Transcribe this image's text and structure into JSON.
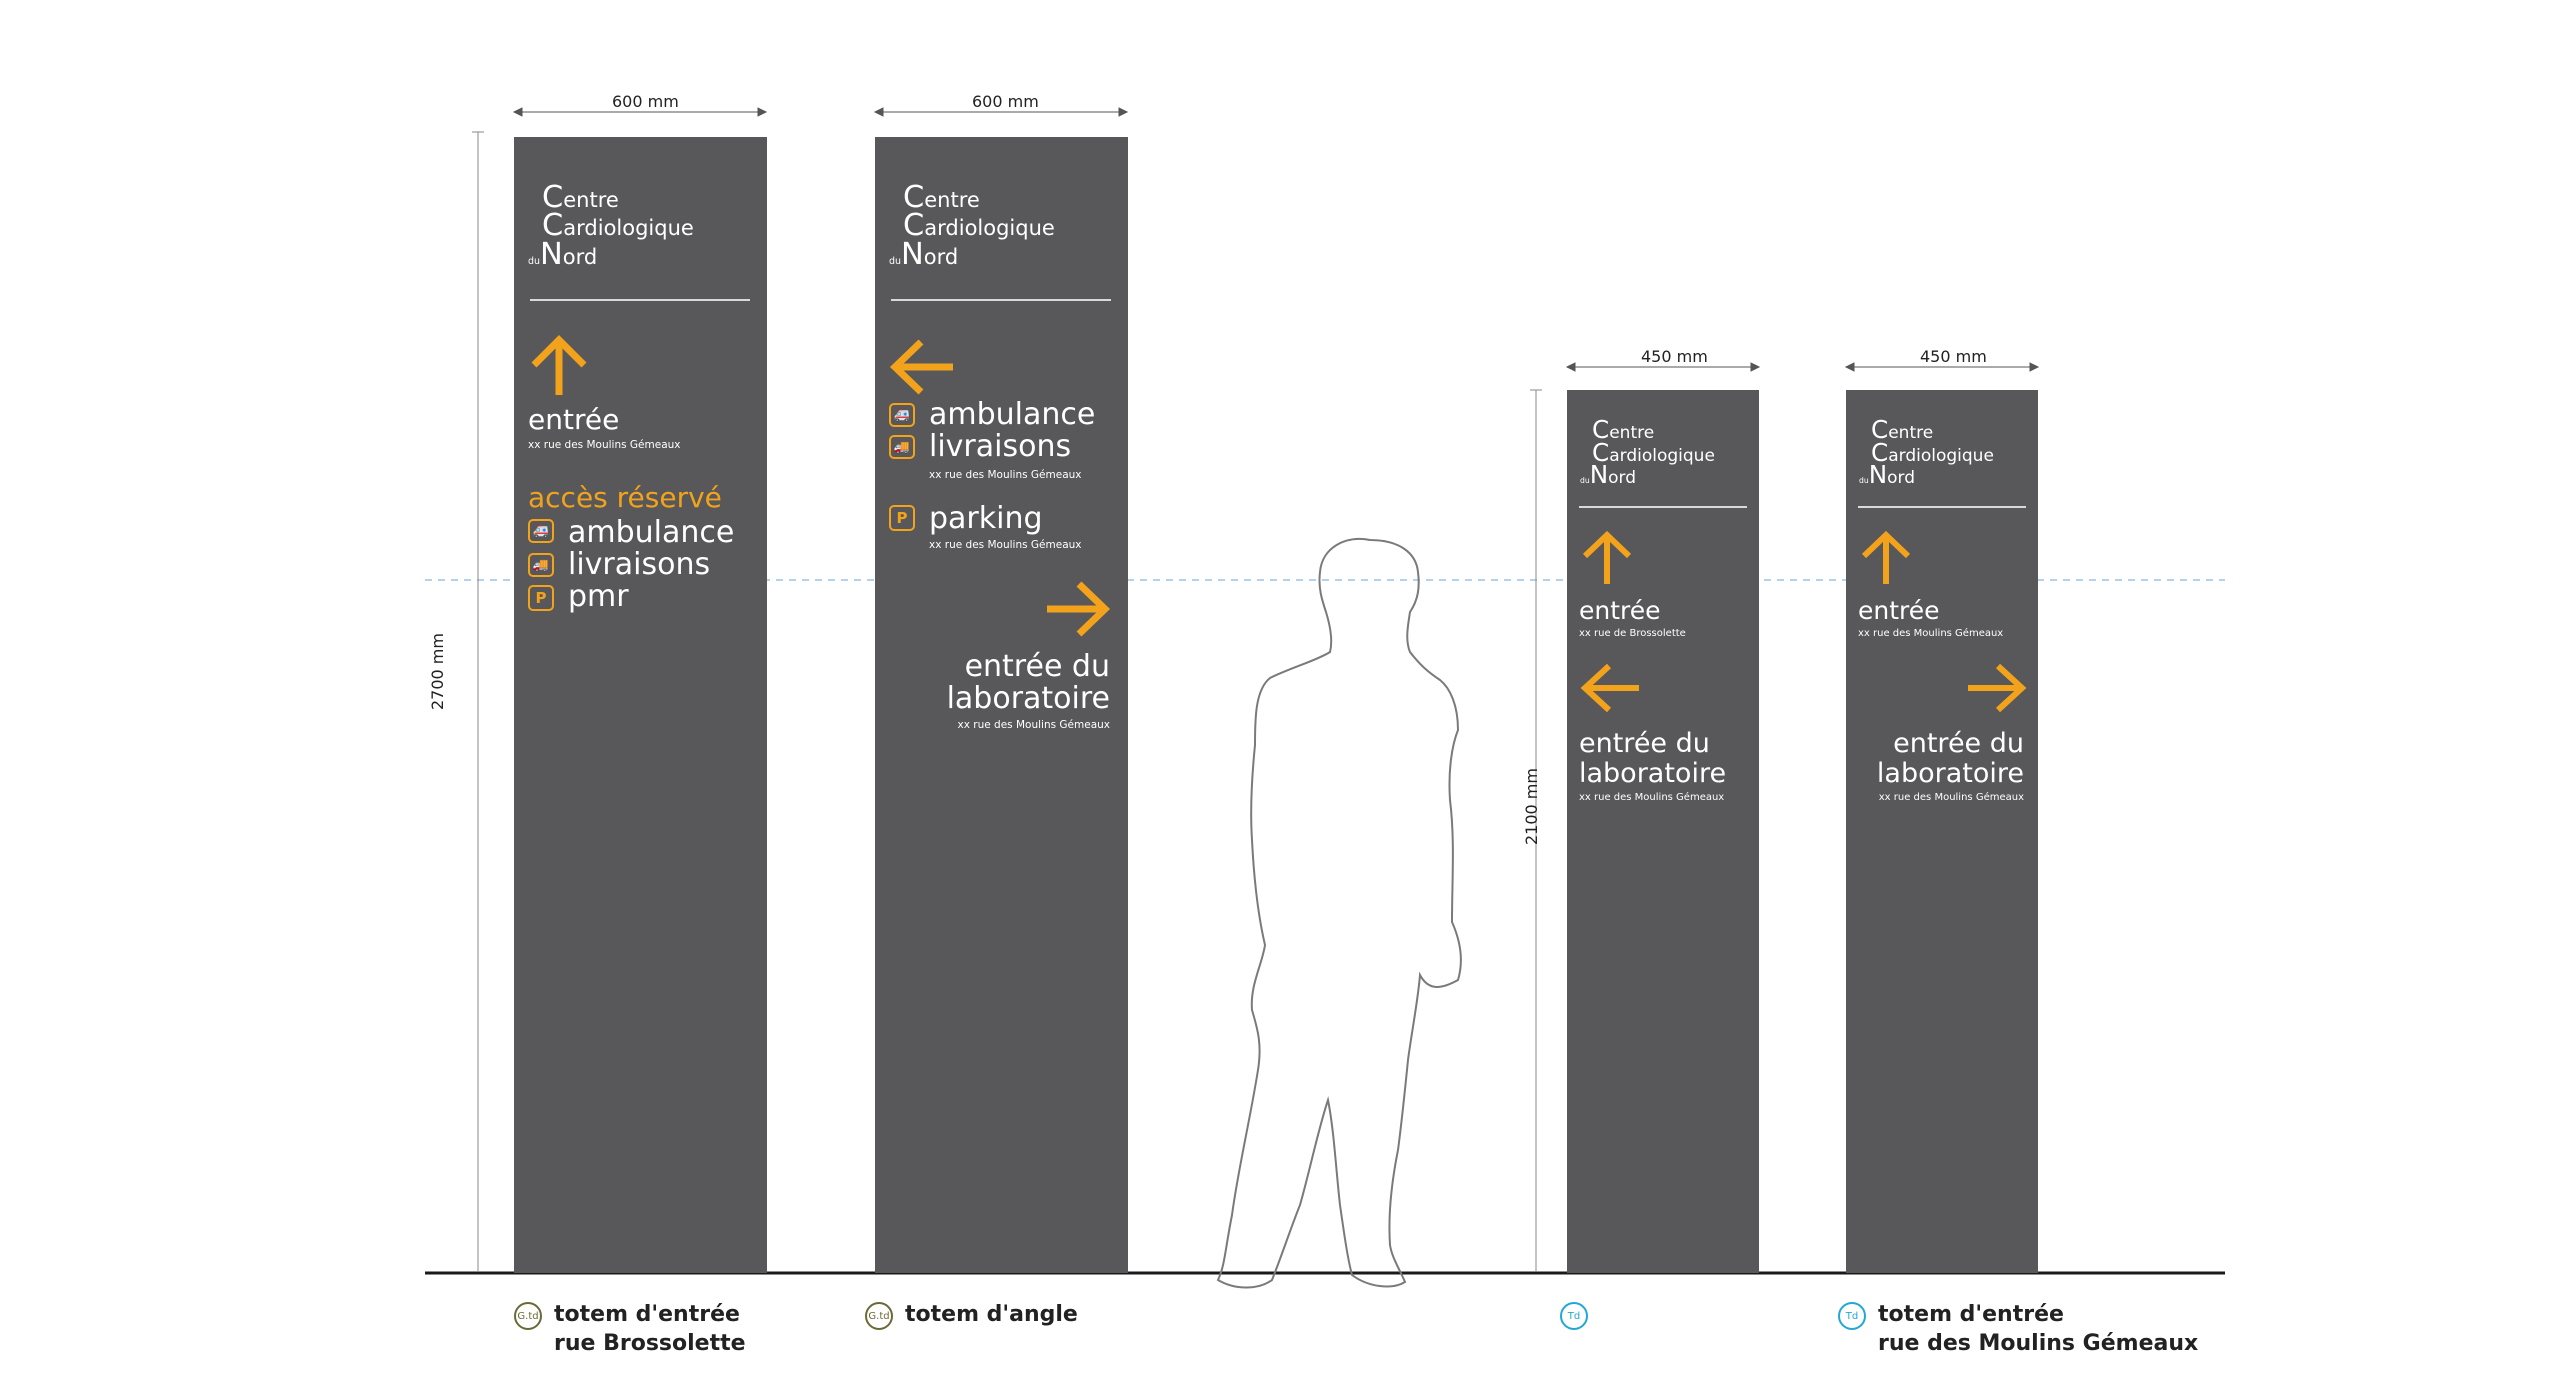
{
  "colors": {
    "panel": "#58585a",
    "accent": "#f2a31b",
    "badge_gtd": "#6b6a36",
    "badge_td": "#21a8d8",
    "guide": "#9cc3e6"
  },
  "brand": {
    "line1_cap": "C",
    "line1_rest": "entre",
    "line2_cap": "C",
    "line2_rest": "ardiologique",
    "line3_du": "du",
    "line3_cap": "N",
    "line3_rest": "ord"
  },
  "dimensions": {
    "w600a": "600 mm",
    "w600b": "600 mm",
    "w450a": "450 mm",
    "w450b": "450 mm",
    "h2700": "2700 mm",
    "h2100": "2100 mm"
  },
  "totem1": {
    "entree": "entrée",
    "entree_addr": "xx rue des Moulins Gémeaux",
    "acces": "accès réservé",
    "ambulance": "ambulance",
    "livraisons": "livraisons",
    "pmr": "pmr",
    "arrow": "up"
  },
  "totem2": {
    "ambulance": "ambulance",
    "livraisons": "livraisons",
    "livraisons_addr": "xx rue des Moulins Gémeaux",
    "parking": "parking",
    "parking_addr": "xx rue des Moulins Gémeaux",
    "labo1": "entrée du",
    "labo2": "laboratoire",
    "labo_addr": "xx rue des Moulins Gémeaux"
  },
  "totem3": {
    "entree": "entrée",
    "entree_addr": "xx rue de Brossolette",
    "labo1": "entrée du",
    "labo2": "laboratoire",
    "labo_addr": "xx rue des Moulins Gémeaux"
  },
  "totem4": {
    "entree": "entrée",
    "entree_addr": "xx rue des Moulins Gémeaux",
    "labo1": "entrée du",
    "labo2": "laboratoire",
    "labo_addr": "xx rue des Moulins Gémeaux"
  },
  "icons": {
    "p_letter": "P",
    "parking_letter": "P"
  },
  "captions": {
    "c1_badge": "G.td",
    "c1_line1": "totem d'entrée",
    "c1_line2": "rue Brossolette",
    "c2_badge": "G.td",
    "c2_line1": "totem d'angle",
    "c3_badge": "Td",
    "c4_badge": "Td",
    "c4_line1": "totem d'entrée",
    "c4_line2": "rue des Moulins Gémeaux"
  }
}
